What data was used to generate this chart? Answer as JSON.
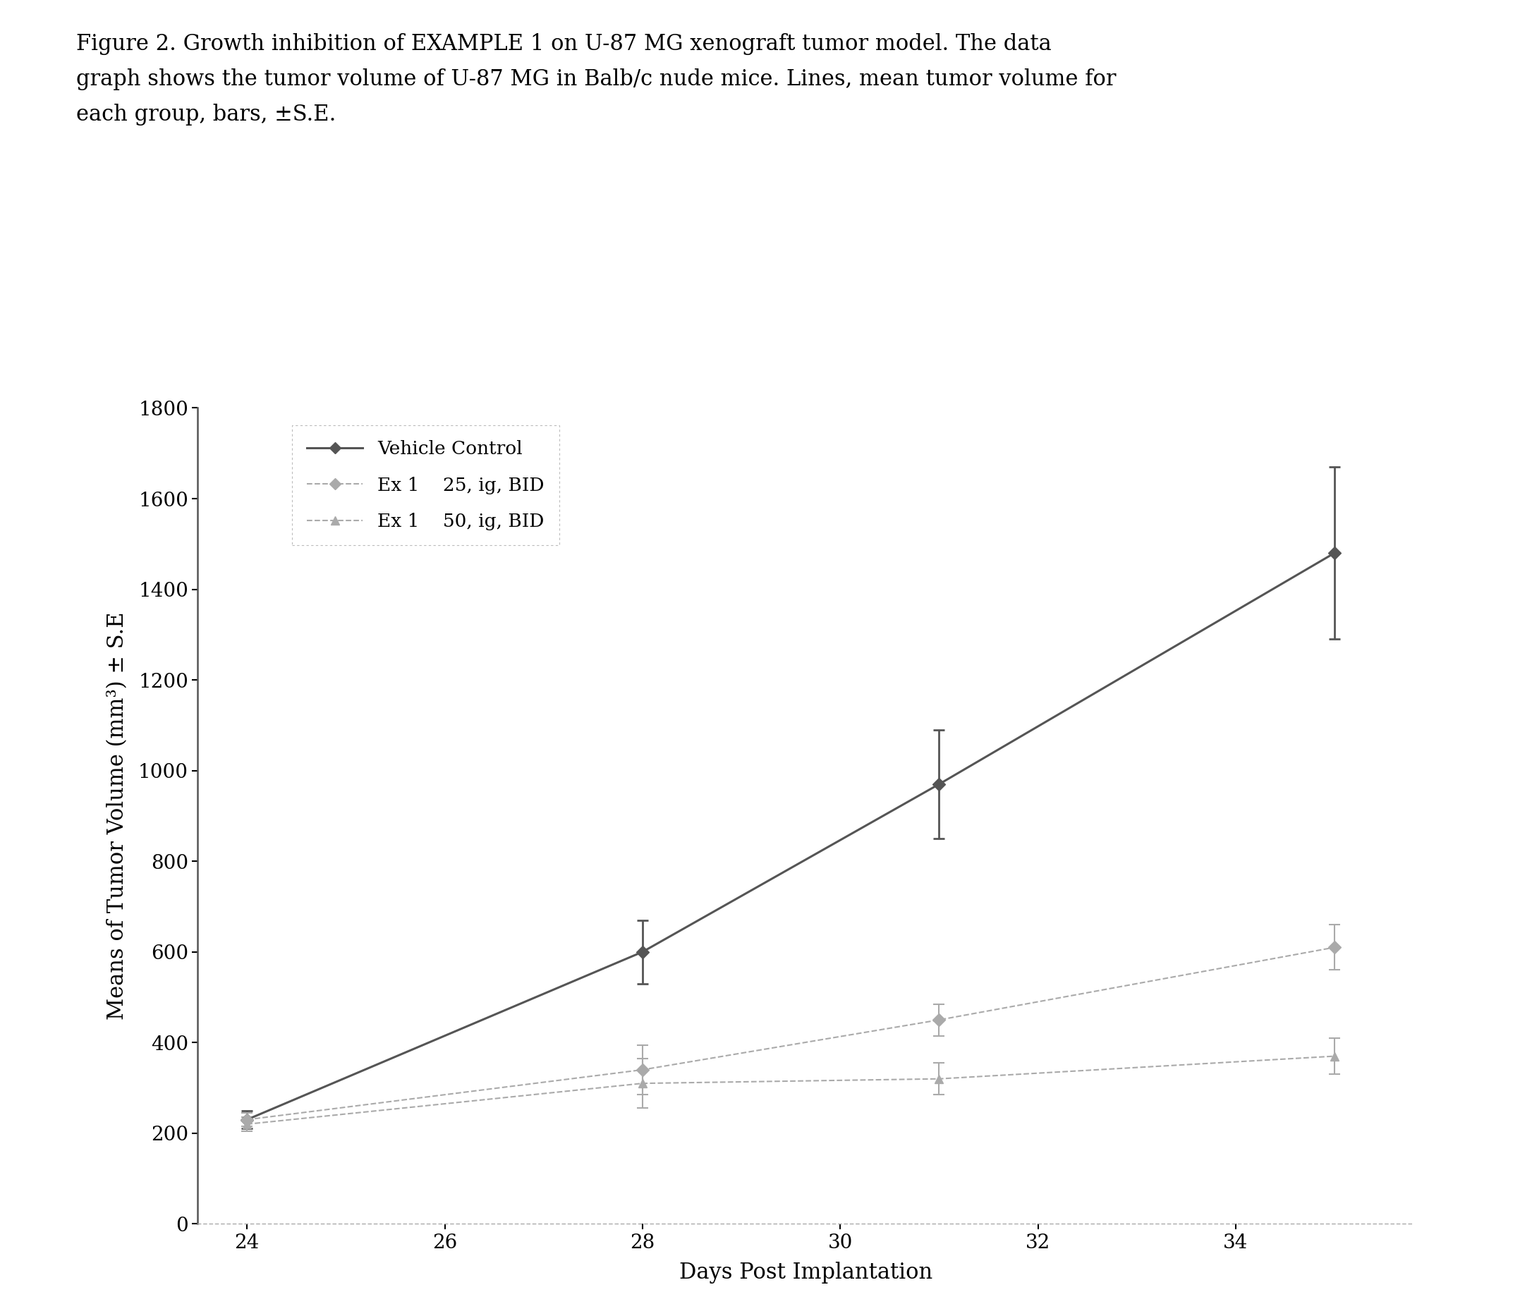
{
  "title_text": "Figure 2. Growth inhibition of EXAMPLE 1 on U-87 MG xenograft tumor model. The data\ngraph shows the tumor volume of U-87 MG in Balb/c nude mice. Lines, mean tumor volume for\neach group, bars, ±S.E.",
  "xlabel": "Days Post Implantation",
  "ylabel": "Means of Tumor Volume (mm³) ± S.E",
  "xlim": [
    23.5,
    35.8
  ],
  "ylim": [
    0,
    1800
  ],
  "xticks": [
    24,
    26,
    28,
    30,
    32,
    34
  ],
  "yticks": [
    0,
    200,
    400,
    600,
    800,
    1000,
    1200,
    1400,
    1600,
    1800
  ],
  "vehicle_control": {
    "x": [
      24,
      28,
      31,
      35
    ],
    "y": [
      230,
      600,
      970,
      1480
    ],
    "yerr": [
      20,
      70,
      120,
      190
    ],
    "label": "—◇— Vehicle Control",
    "color": "#555555",
    "linestyle": "-",
    "marker": "D",
    "linewidth": 2.2
  },
  "ex1_25": {
    "x": [
      24,
      28,
      31,
      35
    ],
    "y": [
      230,
      340,
      450,
      610
    ],
    "yerr": [
      15,
      55,
      35,
      50
    ],
    "label": "–◇–  Ex 1    25, ig, BID",
    "color": "#aaaaaa",
    "linestyle": "--",
    "marker": "D",
    "linewidth": 1.5
  },
  "ex1_50": {
    "x": [
      24,
      28,
      31,
      35
    ],
    "y": [
      220,
      310,
      320,
      370
    ],
    "yerr": [
      15,
      55,
      35,
      40
    ],
    "label": "–▲–  Ex 1    50, ig, BID",
    "color": "#aaaaaa",
    "linestyle": "--",
    "marker": "^",
    "linewidth": 1.5
  },
  "background_color": "#ffffff",
  "legend_border_color": "#aaaaaa",
  "title_fontsize": 22,
  "axis_label_fontsize": 22,
  "tick_fontsize": 20,
  "legend_fontsize": 19
}
